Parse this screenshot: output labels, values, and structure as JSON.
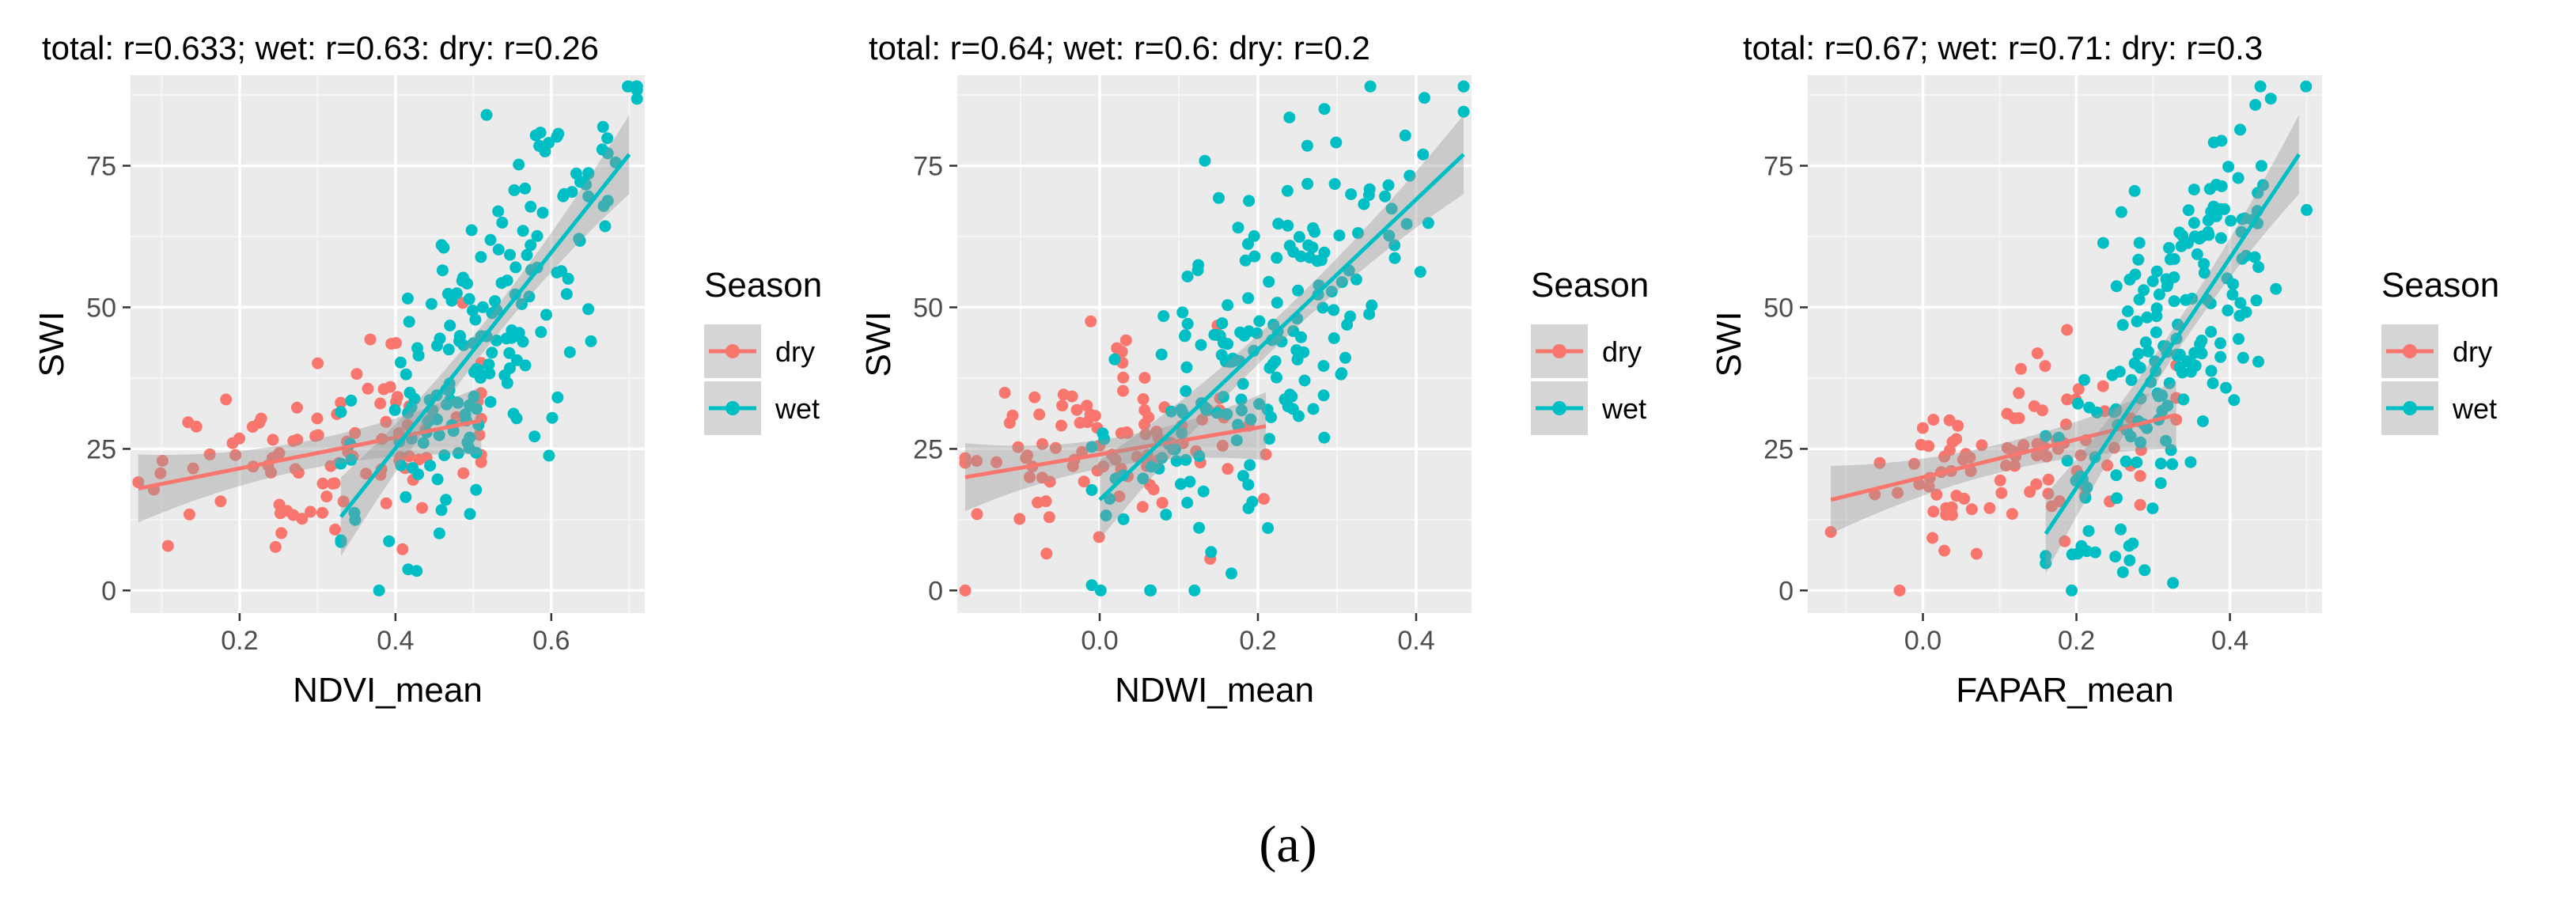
{
  "figure": {
    "caption": "(a)"
  },
  "colors": {
    "dry": "#F8766D",
    "wet": "#00BFC4",
    "panel": "#EBEBEB",
    "grid_major": "#FFFFFF",
    "grid_minor": "#F5F5F5",
    "ci": "#999999",
    "text": "#000000",
    "tick_text": "#4D4D4D"
  },
  "chart_data": [
    {
      "type": "scatter",
      "title": "total: r=0.633; wet: r=0.63: dry: r=0.26",
      "xlabel": "NDVI_mean",
      "ylabel": "SWI",
      "xlim": [
        0.06,
        0.72
      ],
      "ylim": [
        -4,
        91
      ],
      "xticks": [
        0.2,
        0.4,
        0.6
      ],
      "xtick_labels": [
        "0.2",
        "0.4",
        "0.6"
      ],
      "yticks": [
        0,
        25,
        50,
        75
      ],
      "ytick_labels": [
        "0",
        "25",
        "50",
        "75"
      ],
      "legend": {
        "title": "Season",
        "entries": [
          "dry",
          "wet"
        ],
        "position": "right"
      },
      "series": [
        {
          "name": "dry",
          "x_range": [
            0.07,
            0.51
          ],
          "fit": {
            "x0": 0.07,
            "y0": 18,
            "x1": 0.51,
            "y1": 30
          },
          "ci_halfwidth": [
            6,
            2.5,
            6
          ],
          "center": [
            0.3,
            25
          ],
          "spread": [
            0.11,
            9
          ],
          "n": 95
        },
        {
          "name": "wet",
          "x_range": [
            0.33,
            0.71
          ],
          "fit": {
            "x0": 0.33,
            "y0": 13,
            "x1": 0.7,
            "y1": 77
          },
          "ci_halfwidth": [
            7,
            2.5,
            7
          ],
          "center": [
            0.52,
            45
          ],
          "spread": [
            0.09,
            20
          ],
          "n": 190
        }
      ]
    },
    {
      "type": "scatter",
      "title": "total: r=0.64; wet: r=0.6: dry: r=0.2",
      "xlabel": "NDWI_mean",
      "ylabel": "SWI",
      "xlim": [
        -0.18,
        0.47
      ],
      "ylim": [
        -4,
        91
      ],
      "xticks": [
        0.0,
        0.2,
        0.4
      ],
      "xtick_labels": [
        "0.0",
        "0.2",
        "0.4"
      ],
      "yticks": [
        0,
        25,
        50,
        75
      ],
      "ytick_labels": [
        "0",
        "25",
        "50",
        "75"
      ],
      "legend": {
        "title": "Season",
        "entries": [
          "dry",
          "wet"
        ],
        "position": "right"
      },
      "series": [
        {
          "name": "dry",
          "x_range": [
            -0.17,
            0.21
          ],
          "fit": {
            "x0": -0.17,
            "y0": 20,
            "x1": 0.21,
            "y1": 29
          },
          "ci_halfwidth": [
            6,
            2.5,
            6
          ],
          "center": [
            0.0,
            25
          ],
          "spread": [
            0.09,
            9
          ],
          "n": 95
        },
        {
          "name": "wet",
          "x_range": [
            -0.01,
            0.46
          ],
          "fit": {
            "x0": 0.0,
            "y0": 16,
            "x1": 0.46,
            "y1": 77
          },
          "ci_halfwidth": [
            7,
            2.5,
            7
          ],
          "center": [
            0.2,
            45
          ],
          "spread": [
            0.1,
            20
          ],
          "n": 190
        }
      ]
    },
    {
      "type": "scatter",
      "title": "total: r=0.67; wet: r=0.71: dry: r=0.3",
      "xlabel": "FAPAR_mean",
      "ylabel": "SWI",
      "xlim": [
        -0.15,
        0.52
      ],
      "ylim": [
        -4,
        91
      ],
      "xticks": [
        0.0,
        0.2,
        0.4
      ],
      "xtick_labels": [
        "0.0",
        "0.2",
        "0.4"
      ],
      "yticks": [
        0,
        25,
        50,
        75
      ],
      "ytick_labels": [
        "0",
        "25",
        "50",
        "75"
      ],
      "legend": {
        "title": "Season",
        "entries": [
          "dry",
          "wet"
        ],
        "position": "right"
      },
      "series": [
        {
          "name": "dry",
          "x_range": [
            -0.12,
            0.33
          ],
          "fit": {
            "x0": -0.12,
            "y0": 16,
            "x1": 0.33,
            "y1": 31
          },
          "ci_halfwidth": [
            6,
            2.5,
            6
          ],
          "center": [
            0.12,
            25
          ],
          "spread": [
            0.1,
            9
          ],
          "n": 95
        },
        {
          "name": "wet",
          "x_range": [
            0.16,
            0.5
          ],
          "fit": {
            "x0": 0.16,
            "y0": 10,
            "x1": 0.49,
            "y1": 77
          },
          "ci_halfwidth": [
            7,
            2.5,
            7
          ],
          "center": [
            0.33,
            45
          ],
          "spread": [
            0.08,
            20
          ],
          "n": 190
        }
      ]
    }
  ]
}
